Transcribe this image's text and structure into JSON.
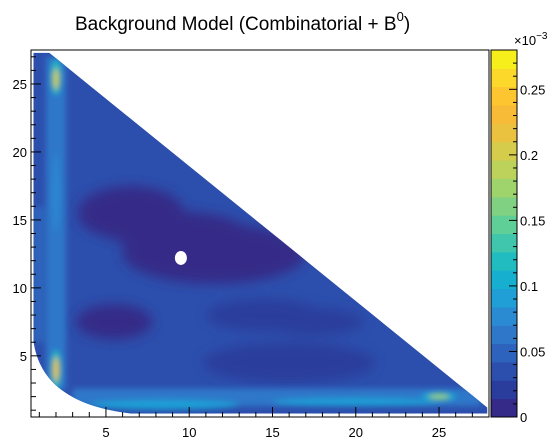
{
  "chart_data": {
    "type": "heatmap",
    "title": "Background Model (Combinatorial + B",
    "title_superscript": "0",
    "title_suffix": ")",
    "xlabel": "",
    "ylabel": "",
    "xlim": [
      0.5,
      28
    ],
    "ylim": [
      0.5,
      27.5
    ],
    "x_ticks": [
      5,
      10,
      15,
      20,
      25
    ],
    "y_ticks": [
      5,
      10,
      15,
      20,
      25
    ],
    "z_range": [
      0,
      0.28
    ],
    "z_ticks": [
      0,
      0.05,
      0.1,
      0.15,
      0.2,
      0.25
    ],
    "z_tick_labels": [
      "0",
      "0.05",
      "0.1",
      "0.15",
      "0.2",
      "0.25"
    ],
    "z_multiplier_label": "×10",
    "z_multiplier_exponent": "−3",
    "palette": [
      "#352a87",
      "#2a3c9c",
      "#2c4fad",
      "#2d63bc",
      "#2f77c9",
      "#2b8bd2",
      "#1f9fd5",
      "#17afcf",
      "#21bcc0",
      "#3fc6ac",
      "#60ce97",
      "#80d282",
      "#9fd46d",
      "#bcd25b",
      "#d6cc4b",
      "#ebc23f",
      "#f8bb38",
      "#fdc530",
      "#fbd829",
      "#f6ef1c"
    ],
    "region": "Dalitz-like triangular domain bounded by x>~0.6, y>~0.6 and x+y<~29.5 with rounded lower-left corner",
    "base_value": 0.03,
    "features": [
      {
        "kind": "low",
        "x": 6.5,
        "y": 15.5,
        "value": 0.01
      },
      {
        "kind": "low",
        "x": 11.5,
        "y": 12.5,
        "value": 0.01
      },
      {
        "kind": "low",
        "x": 5.5,
        "y": 7.5,
        "value": 0.012
      },
      {
        "kind": "low",
        "x": 16.0,
        "y": 4.5,
        "value": 0.012
      },
      {
        "kind": "low",
        "x": 17.5,
        "y": 7.5,
        "value": 0.015
      },
      {
        "kind": "high",
        "x": 2.0,
        "y": 25.5,
        "value": 0.2
      },
      {
        "kind": "high",
        "x": 2.0,
        "y": 4.0,
        "value": 0.22
      },
      {
        "kind": "high",
        "x": 25.0,
        "y": 2.0,
        "value": 0.18
      },
      {
        "kind": "hole",
        "x": 9.5,
        "y": 12.2
      }
    ]
  }
}
